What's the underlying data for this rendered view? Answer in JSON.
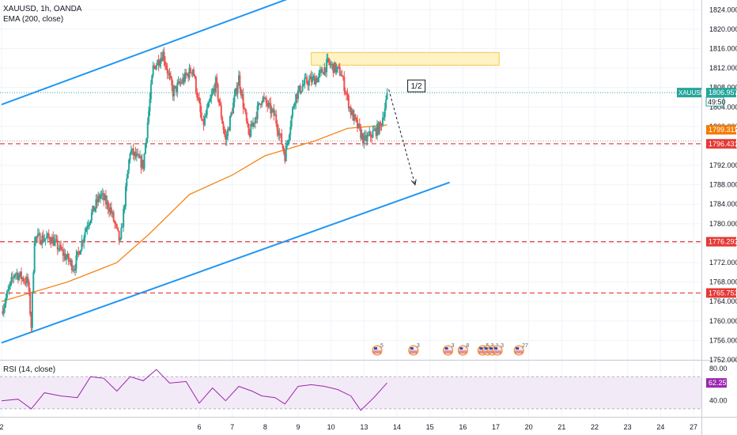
{
  "header": {
    "symbol_line": "XAUUSD, 1h, OANDA",
    "ema_line": "EMA (200, close)",
    "rsi_line": "RSI (14, close)"
  },
  "chart_data": {
    "type": "candlestick",
    "symbol": "XAUUSD",
    "interval": "1h",
    "source": "OANDA",
    "price_axis": {
      "range": [
        1752,
        1826
      ],
      "ticks": [
        1824,
        1820,
        1816,
        1812,
        1808,
        1804,
        1800,
        1796,
        1792,
        1788,
        1784,
        1780,
        1776,
        1772,
        1768,
        1764,
        1760,
        1756,
        1752
      ],
      "tick_labels": [
        "1824.000",
        "1820.000",
        "1816.000",
        "1812.000",
        "1808.000",
        "1804.000",
        "1800.000",
        "1796.000",
        "1792.000",
        "1788.000",
        "1784.000",
        "1780.000",
        "1776.000",
        "1772.000",
        "1768.000",
        "1764.000",
        "1760.000",
        "1756.000",
        "1752.000"
      ]
    },
    "time_axis": {
      "labels": [
        "2",
        "6",
        "7",
        "8",
        "9",
        "10",
        "13",
        "14",
        "15",
        "16",
        "17",
        "20",
        "21",
        "22",
        "23",
        "24",
        "27"
      ],
      "positions": [
        0,
        6,
        7,
        8,
        9,
        10,
        11,
        12,
        13,
        14,
        15,
        16,
        17,
        18,
        19,
        20,
        21
      ]
    },
    "price_path": [
      [
        0,
        1762
      ],
      [
        0.4,
        1770
      ],
      [
        0.8,
        1768
      ],
      [
        0.9,
        1759
      ],
      [
        1.0,
        1777
      ],
      [
        1.5,
        1777
      ],
      [
        2.2,
        1771
      ],
      [
        2.6,
        1780
      ],
      [
        3.0,
        1786
      ],
      [
        3.3,
        1783
      ],
      [
        3.6,
        1776
      ],
      [
        3.9,
        1795
      ],
      [
        4.3,
        1792
      ],
      [
        4.6,
        1812
      ],
      [
        4.9,
        1815
      ],
      [
        5.2,
        1807
      ],
      [
        5.8,
        1812
      ],
      [
        6.1,
        1800
      ],
      [
        6.5,
        1809
      ],
      [
        6.8,
        1797
      ],
      [
        7.2,
        1810
      ],
      [
        7.5,
        1798
      ],
      [
        7.9,
        1806
      ],
      [
        8.3,
        1802
      ],
      [
        8.6,
        1794
      ],
      [
        8.9,
        1806
      ],
      [
        9.2,
        1809
      ],
      [
        9.6,
        1810
      ],
      [
        9.9,
        1813
      ],
      [
        10.3,
        1811
      ],
      [
        10.6,
        1803
      ],
      [
        10.8,
        1800
      ],
      [
        11.0,
        1797
      ],
      [
        11.5,
        1800
      ],
      [
        11.7,
        1806
      ]
    ],
    "ema_path": [
      [
        0,
        1764
      ],
      [
        2,
        1768
      ],
      [
        3.5,
        1772
      ],
      [
        4.5,
        1778
      ],
      [
        5.7,
        1786
      ],
      [
        7,
        1790
      ],
      [
        8,
        1794
      ],
      [
        9.5,
        1797
      ],
      [
        10.5,
        1799.6
      ],
      [
        11.7,
        1800.3
      ]
    ],
    "channel": {
      "upper": [
        [
          0,
          1804.5
        ],
        [
          9.4,
          1828
        ]
      ],
      "lower": [
        [
          0,
          1755.5
        ],
        [
          13.6,
          1788.5
        ]
      ]
    },
    "supply_zone": {
      "from": 9.4,
      "to": 15.1,
      "low": 1812.6,
      "high": 1815.2
    },
    "projection": [
      [
        11.75,
        1807.6
      ],
      [
        12.55,
        1788
      ]
    ],
    "projection_label": "1/2",
    "levels": [
      {
        "price": 1796.431,
        "label": "1796.431",
        "color": "#e53935"
      },
      {
        "price": 1776.293,
        "label": "1776.293",
        "color": "#e53935"
      },
      {
        "price": 1765.753,
        "label": "1765.753",
        "color": "#e53935"
      }
    ],
    "ema_value": {
      "price": 1799.311,
      "label": "1799.311",
      "color": "#f57c00"
    },
    "current_price": {
      "price": 1806.957,
      "symbol_label": "XAUUSD",
      "value_label": "1806.957",
      "countdown": "49:50",
      "color": "#26a69a"
    },
    "economic_events": [
      {
        "pos": 11.4,
        "count": "5"
      },
      {
        "pos": 12.5,
        "count": "3"
      },
      {
        "pos": 13.55,
        "count": "3"
      },
      {
        "pos": 14.0,
        "count": "8"
      },
      {
        "pos": 14.6,
        "count": "5"
      },
      {
        "pos": 14.75,
        "count": "3"
      },
      {
        "pos": 14.9,
        "count": "1"
      },
      {
        "pos": 15.05,
        "count": "3"
      },
      {
        "pos": 15.7,
        "count": "27"
      }
    ],
    "rsi": {
      "range": [
        20,
        90
      ],
      "ticks": [
        80,
        40
      ],
      "tick_labels": [
        "80.00",
        "40.00"
      ],
      "upper_band": 70,
      "lower_band": 30,
      "path": [
        [
          0,
          40
        ],
        [
          0.5,
          42
        ],
        [
          0.9,
          30
        ],
        [
          1.3,
          50
        ],
        [
          1.8,
          46
        ],
        [
          2.3,
          44
        ],
        [
          2.7,
          70
        ],
        [
          3.1,
          68
        ],
        [
          3.5,
          52
        ],
        [
          3.9,
          70
        ],
        [
          4.3,
          65
        ],
        [
          4.7,
          79
        ],
        [
          5.1,
          62
        ],
        [
          5.6,
          64
        ],
        [
          6.0,
          37
        ],
        [
          6.4,
          56
        ],
        [
          6.8,
          40
        ],
        [
          7.2,
          58
        ],
        [
          7.6,
          52
        ],
        [
          7.9,
          46
        ],
        [
          8.3,
          44
        ],
        [
          8.6,
          36
        ],
        [
          9.0,
          58
        ],
        [
          9.4,
          60
        ],
        [
          9.8,
          58
        ],
        [
          10.2,
          54
        ],
        [
          10.6,
          46
        ],
        [
          10.9,
          28
        ],
        [
          11.3,
          44
        ],
        [
          11.7,
          62.25
        ]
      ],
      "value_label": "62.25",
      "color": "#9c27b0"
    }
  },
  "colors": {
    "bull": "#26a69a",
    "bear": "#ef5350",
    "channel": "#2196f3",
    "ema": "#f57c00",
    "level": "#e53935",
    "zone_fill": "#fff3c4",
    "zone_border": "#f7c948",
    "rsi": "#9c27b0",
    "axis_text": "#131722"
  }
}
